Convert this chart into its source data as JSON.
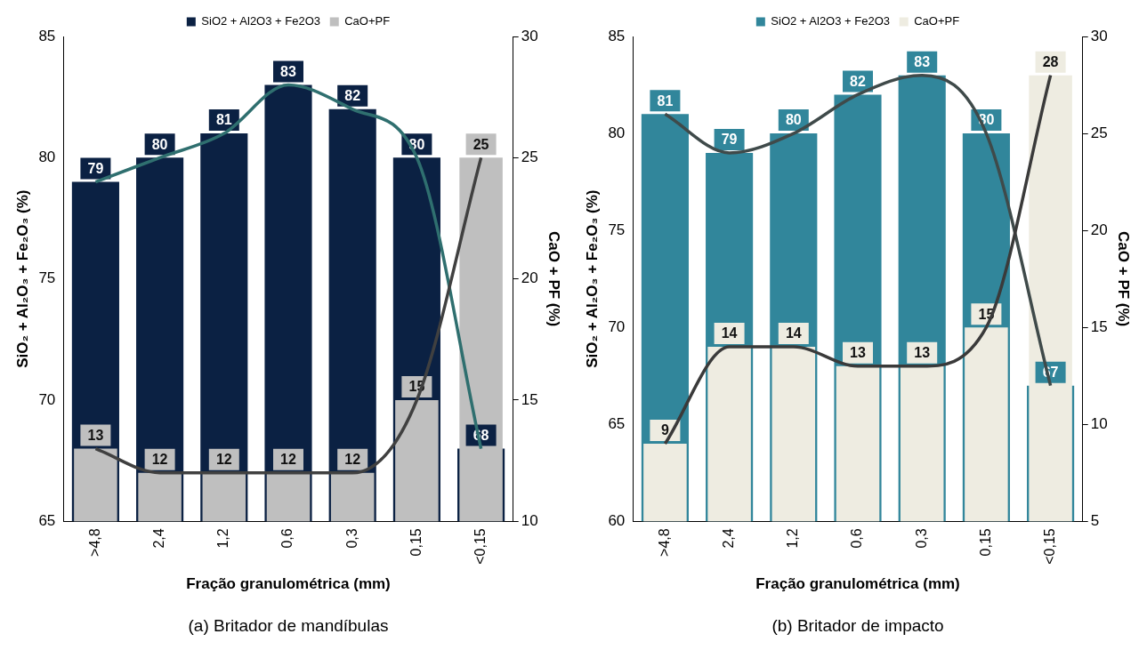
{
  "chart_data": [
    {
      "type": "bar",
      "title": "(a) Britador de mandíbulas",
      "xlabel": "Fração granulométrica (mm)",
      "ylabel": "SiO₂ + Al₂O₃ + Fe₂O₃ (%)",
      "y2label": "CaO + PF (%)",
      "categories": [
        ">4,8",
        "2,4",
        "1,2",
        "0,6",
        "0,3",
        "0,15",
        "<0,15"
      ],
      "ylim": [
        65,
        85
      ],
      "yticks": [
        65,
        70,
        75,
        80,
        85
      ],
      "y2lim": [
        10,
        30
      ],
      "y2ticks": [
        10,
        15,
        20,
        25,
        30
      ],
      "legend": "top",
      "grid": false,
      "marker": "none",
      "series": [
        {
          "name": "SiO2 + Al2O3 + Fe2O3",
          "color": "#0b2143",
          "values": [
            79,
            80,
            81,
            83,
            82,
            80,
            68
          ],
          "value_labels": [
            "79",
            "80",
            "81",
            "83",
            "82",
            "80",
            "68"
          ]
        },
        {
          "name": "CaO+PF",
          "color": "#bfbfbf",
          "axis": "y2",
          "values": [
            13,
            12,
            12,
            12,
            12,
            15,
            25
          ],
          "value_labels": [
            "13",
            "12",
            "12",
            "12",
            "12",
            "15",
            "25"
          ]
        },
        {
          "type": "line",
          "color": "#2f6f6f",
          "values": [
            79,
            80,
            81,
            83,
            82,
            80,
            68
          ]
        },
        {
          "type": "line",
          "color": "#404040",
          "axis": "y2",
          "values": [
            13,
            12,
            12,
            12,
            12,
            15,
            25
          ]
        }
      ]
    },
    {
      "type": "bar",
      "title": "(b) Britador de impacto",
      "xlabel": "Fração granulométrica (mm)",
      "ylabel": "SiO₂ + Al₂O₃ + Fe₂O₃ (%)",
      "y2label": "CaO + PF (%)",
      "categories": [
        ">4,8",
        "2,4",
        "1,2",
        "0,6",
        "0,3",
        "0,15",
        "<0,15"
      ],
      "ylim": [
        60,
        85
      ],
      "yticks": [
        60,
        65,
        70,
        75,
        80,
        85
      ],
      "y2lim": [
        5,
        30
      ],
      "y2ticks": [
        5,
        10,
        15,
        20,
        25,
        30
      ],
      "legend": "top",
      "grid": false,
      "marker": "none",
      "series": [
        {
          "name": "SiO2 + Al2O3 + Fe2O3",
          "color": "#31869b",
          "values": [
            81,
            79,
            80,
            82,
            83,
            80,
            67
          ],
          "value_labels": [
            "81",
            "79",
            "80",
            "82",
            "83",
            "80",
            "67"
          ]
        },
        {
          "name": "CaO+PF",
          "color": "#eeece1",
          "axis": "y2",
          "values": [
            9,
            14,
            14,
            13,
            13,
            15,
            28
          ],
          "value_labels": [
            "9",
            "14",
            "14",
            "13",
            "13",
            "15",
            "28"
          ]
        },
        {
          "type": "line",
          "color": "#3f4a4a",
          "values": [
            81,
            79,
            80,
            82,
            83,
            80,
            67
          ]
        },
        {
          "type": "line",
          "color": "#3a3a3a",
          "axis": "y2",
          "values": [
            9,
            14,
            14,
            13,
            13,
            15,
            28
          ]
        }
      ]
    }
  ]
}
